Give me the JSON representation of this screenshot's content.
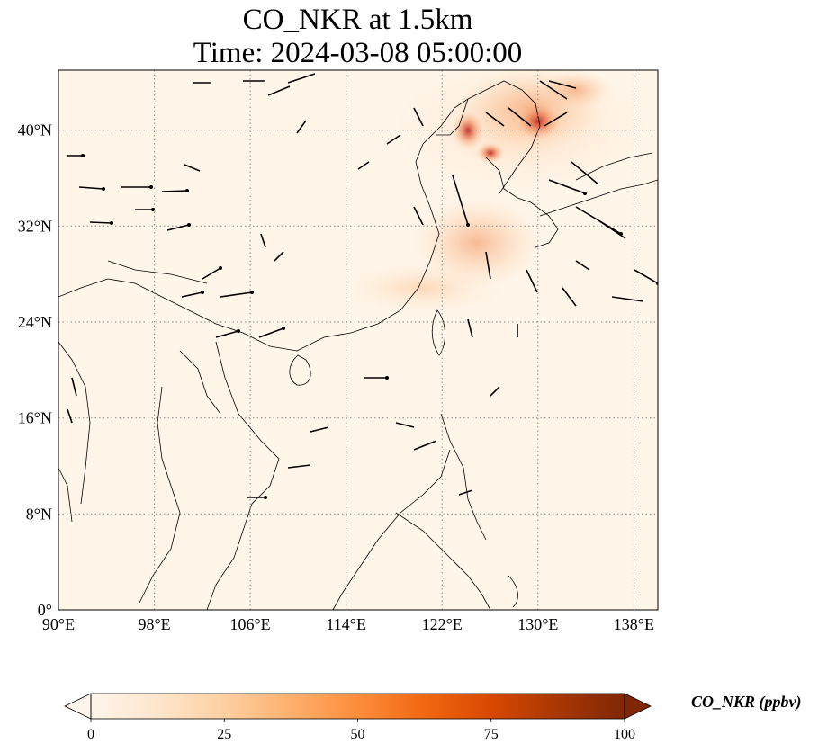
{
  "title": {
    "line1": "CO_NKR at 1.5km",
    "line2": "Time: 2024-03-08 05:00:00"
  },
  "map": {
    "lon_range": [
      90,
      140
    ],
    "lat_range": [
      0,
      45
    ],
    "lon_ticks": [
      "90°E",
      "98°E",
      "106°E",
      "114°E",
      "122°E",
      "130°E",
      "138°E"
    ],
    "lat_ticks": [
      "0°",
      "8°N",
      "16°N",
      "24°N",
      "32°N",
      "40°N"
    ],
    "gridlines": "dotted",
    "background_color": "#fff5e9",
    "plume_color": "#c0180f",
    "vector_color": "#000000"
  },
  "colorbar": {
    "label": "CO_NKR (ppbv)",
    "ticks": [
      "0",
      "25",
      "50",
      "75",
      "100"
    ],
    "extend": "both",
    "colormap": [
      "#fff5eb",
      "#fee6ce",
      "#fdd0a2",
      "#fdae6b",
      "#fd8d3c",
      "#f16913",
      "#d94801",
      "#a63603",
      "#7f2704"
    ]
  }
}
